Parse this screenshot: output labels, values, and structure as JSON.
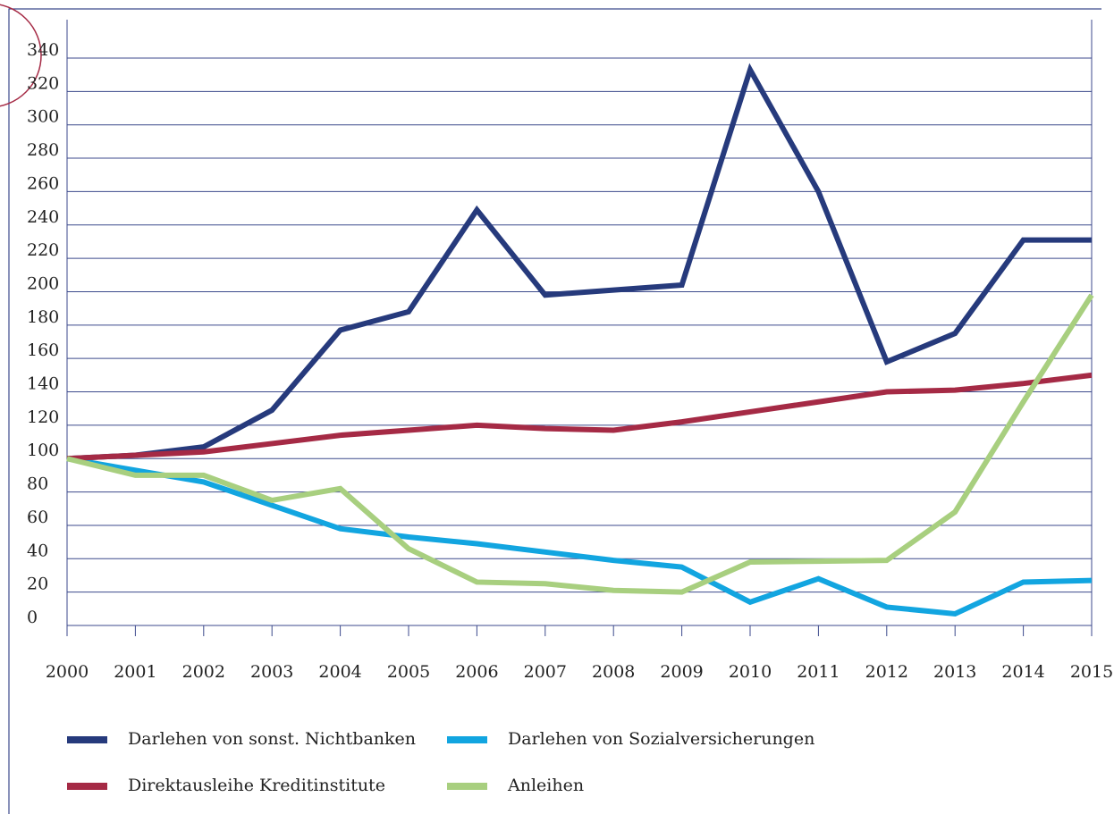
{
  "chart_data": {
    "type": "line",
    "x": [
      2000,
      2001,
      2002,
      2003,
      2004,
      2005,
      2006,
      2007,
      2008,
      2009,
      2010,
      2011,
      2012,
      2013,
      2014,
      2015
    ],
    "xlim": [
      2000,
      2015
    ],
    "xticks": [
      2000,
      2001,
      2002,
      2003,
      2004,
      2005,
      2006,
      2007,
      2008,
      2009,
      2010,
      2011,
      2012,
      2013,
      2014,
      2015
    ],
    "ylim": [
      0,
      340
    ],
    "yticks": [
      0,
      20,
      40,
      60,
      80,
      100,
      120,
      140,
      160,
      180,
      200,
      220,
      240,
      260,
      280,
      300,
      320,
      340
    ],
    "grid": true,
    "series": [
      {
        "name": "Darlehen von sonst. Nichtbanken",
        "color": "#263a7c",
        "values": [
          100,
          102,
          107,
          129,
          177,
          188,
          249,
          198,
          201,
          204,
          333,
          260,
          158,
          175,
          231,
          231
        ]
      },
      {
        "name": "Darlehen von Sozialversicherungen",
        "color": "#12a5e0",
        "values": [
          100,
          93,
          86,
          72,
          58,
          53,
          49,
          44,
          39,
          35,
          14,
          28,
          11,
          7,
          26,
          27
        ]
      },
      {
        "name": "Direktausleihe Kreditinstitute",
        "color": "#a52a45",
        "values": [
          100,
          102,
          104,
          109,
          114,
          117,
          120,
          118,
          117,
          122,
          128,
          134,
          140,
          141,
          145,
          150
        ]
      },
      {
        "name": "Anleihen",
        "color": "#a8cf7f",
        "values": [
          100,
          90,
          90,
          75,
          82,
          46,
          26,
          25,
          21,
          20,
          38,
          38.5,
          39,
          68,
          134,
          198
        ]
      }
    ]
  }
}
